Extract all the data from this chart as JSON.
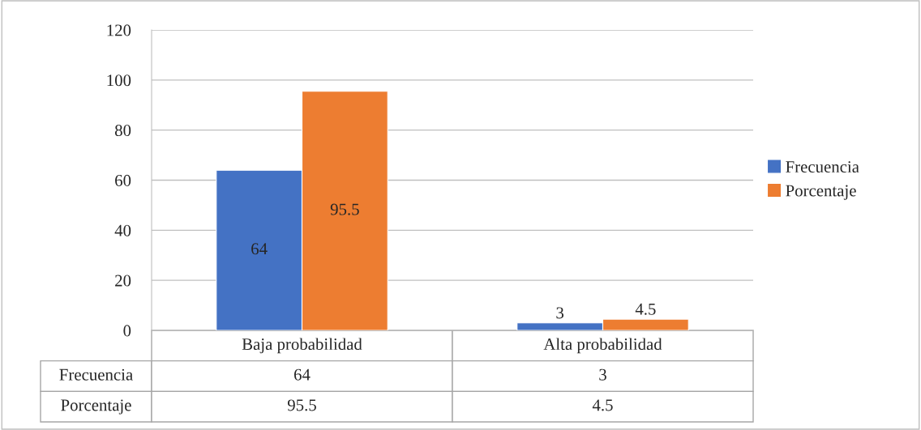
{
  "chart_data": {
    "type": "bar",
    "categories": [
      "Baja probabilidad",
      "Alta probabilidad"
    ],
    "series": [
      {
        "name": "Frecuencia",
        "color": "#4472c4",
        "values": [
          64,
          3
        ],
        "value_labels": [
          "64",
          "3"
        ]
      },
      {
        "name": "Porcentaje",
        "color": "#ed7d31",
        "values": [
          95.5,
          4.5
        ],
        "value_labels": [
          "95.5",
          "4.5"
        ]
      }
    ],
    "ylim": [
      0,
      120
    ],
    "yticks": [
      0,
      20,
      40,
      60,
      80,
      100,
      120
    ],
    "grid": "y",
    "legend": "right",
    "data_labels": true,
    "annotations": [
      "64",
      "3",
      "95.5",
      "4.5"
    ],
    "tick_labels": "y"
  }
}
